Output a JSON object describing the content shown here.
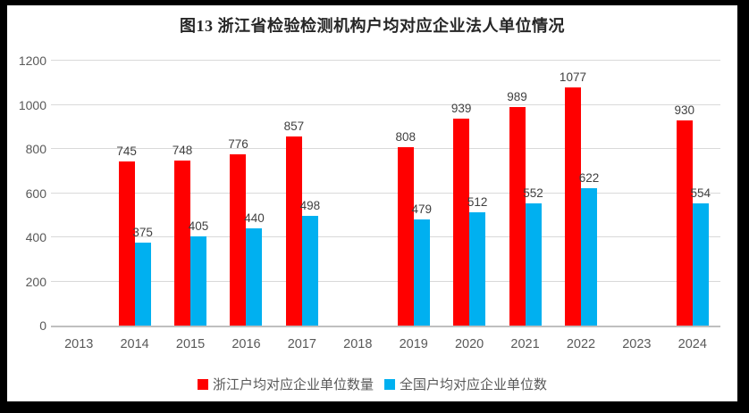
{
  "frame": {
    "border_color": "#000000",
    "background_color": "#FFFFFF"
  },
  "chart_data": {
    "type": "bar",
    "title": "图13 浙江省检验检测机构户均对应企业法人单位情况",
    "categories": [
      "2013",
      "2014",
      "2015",
      "2016",
      "2017",
      "2018",
      "2019",
      "2020",
      "2021",
      "2022",
      "2023",
      "2024"
    ],
    "series": [
      {
        "name": "浙江户均对应企业单位数量",
        "color": "#FF0000",
        "values": [
          null,
          745,
          748,
          776,
          857,
          null,
          808,
          939,
          989,
          1077,
          null,
          930
        ]
      },
      {
        "name": "全国户均对应企业单位数",
        "color": "#00B0F0",
        "values": [
          null,
          375,
          405,
          440,
          498,
          null,
          479,
          512,
          552,
          622,
          null,
          554
        ]
      }
    ],
    "xlabel": "",
    "ylabel": "",
    "ylim": [
      0,
      1200
    ],
    "yticks": [
      0,
      200,
      400,
      600,
      800,
      1000,
      1200
    ],
    "grid": true,
    "data_labels": true,
    "legend_position": "bottom",
    "colors": {
      "gridline": "#D9D9D9",
      "axis_line": "#BFBFBF",
      "tick_text": "#595959",
      "data_label_text": "#404040",
      "title_text": "#262626"
    }
  }
}
